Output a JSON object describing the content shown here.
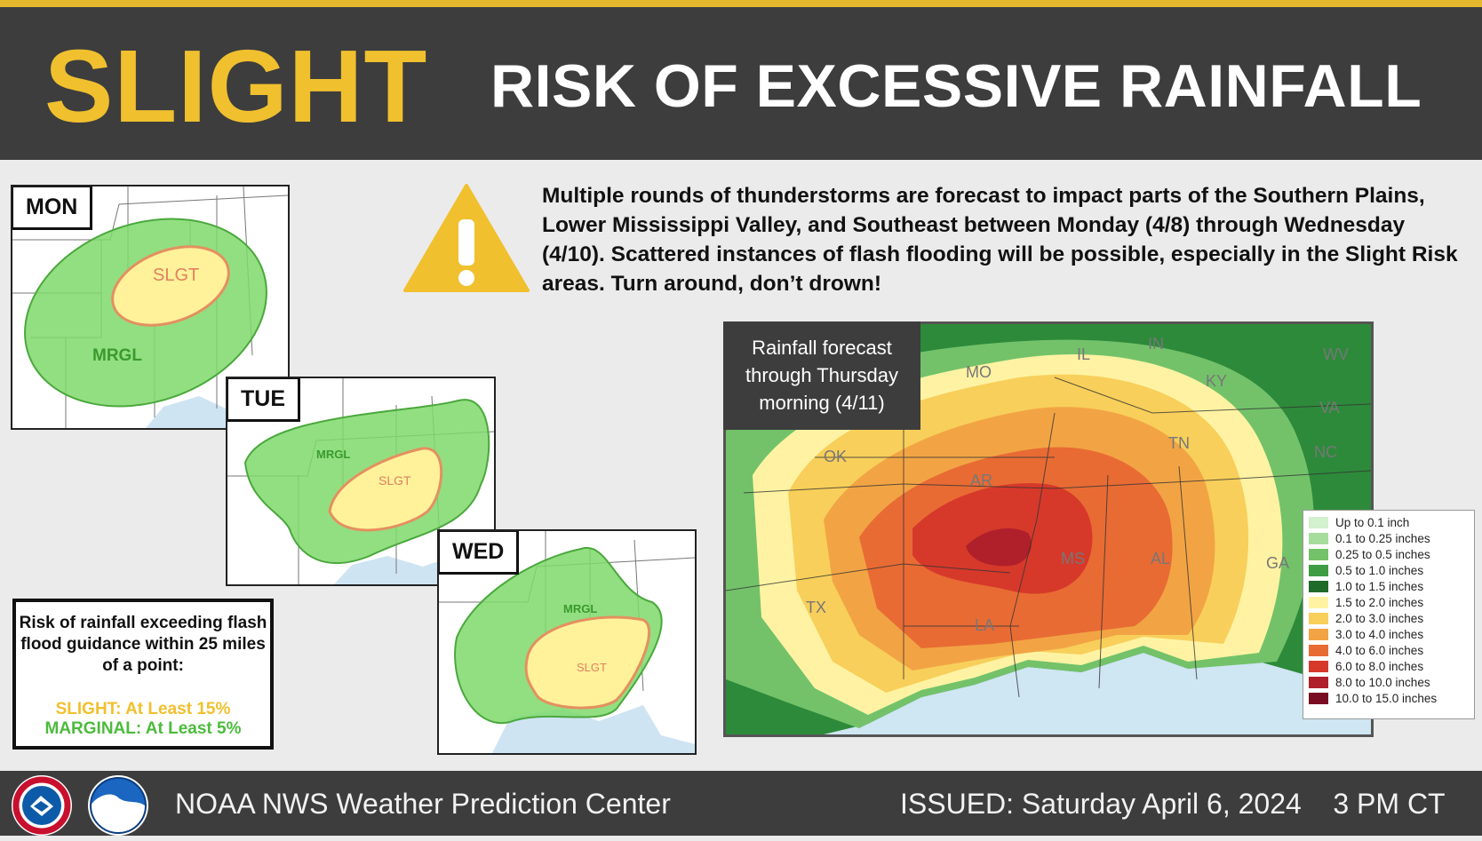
{
  "header": {
    "level": "SLIGHT",
    "title": "RISK OF EXCESSIVE RAINFALL",
    "accent_color": "#f0c02e"
  },
  "warning_icon": "warning-triangle-icon",
  "description": "Multiple rounds of thunderstorms are forecast to impact parts of the Southern Plains, Lower Mississippi Valley, and Southeast between Monday (4/8) through Wednesday (4/10). Scattered instances of flash flooding will be possible, especially in the Slight Risk areas. Turn around, don’t drown!",
  "days": [
    {
      "label": "MON",
      "slight": "SLGT",
      "marginal": "MRGL"
    },
    {
      "label": "TUE",
      "slight": "SLGT",
      "marginal": "MRGL"
    },
    {
      "label": "WED",
      "slight": "SLGT",
      "marginal": "MRGL"
    }
  ],
  "risk_key": {
    "description": "Risk of rainfall exceeding flash flood guidance within 25 miles of a point:",
    "slight": "SLIGHT: At Least 15%",
    "marginal": "MARGINAL: At Least 5%",
    "slight_color": "#f0c02e",
    "marginal_color": "#4cbb3c"
  },
  "rainfall": {
    "title": "Rainfall forecast through Thursday morning (4/11)",
    "states": [
      "MO",
      "IL",
      "IN",
      "KY",
      "WV",
      "VA",
      "TN",
      "NC",
      "OK",
      "AR",
      "MS",
      "AL",
      "GA",
      "TX",
      "LA"
    ],
    "legend": [
      {
        "label": "Up to 0.1 inch",
        "color": "#d3f0cf"
      },
      {
        "label": "0.1 to 0.25 inches",
        "color": "#a7dc9d"
      },
      {
        "label": "0.25 to 0.5 inches",
        "color": "#73c26a"
      },
      {
        "label": "0.5 to 1.0 inches",
        "color": "#3f9c43"
      },
      {
        "label": "1.0 to 1.5 inches",
        "color": "#1f6b2a"
      },
      {
        "label": "1.5 to 2.0 inches",
        "color": "#fff3a3"
      },
      {
        "label": "2.0 to 3.0 inches",
        "color": "#f8cf5a"
      },
      {
        "label": "3.0 to 4.0 inches",
        "color": "#f2a444"
      },
      {
        "label": "4.0 to 6.0 inches",
        "color": "#e86b34"
      },
      {
        "label": "6.0 to 8.0 inches",
        "color": "#d6392a"
      },
      {
        "label": "8.0 to 10.0 inches",
        "color": "#b0202a"
      },
      {
        "label": "10.0 to 15.0 inches",
        "color": "#7a0c22"
      }
    ]
  },
  "footer": {
    "organization": "NOAA NWS Weather Prediction Center",
    "issued": "ISSUED: Saturday April 6, 2024    3 PM CT",
    "logos": [
      "nws-logo-icon",
      "noaa-logo-icon"
    ]
  }
}
